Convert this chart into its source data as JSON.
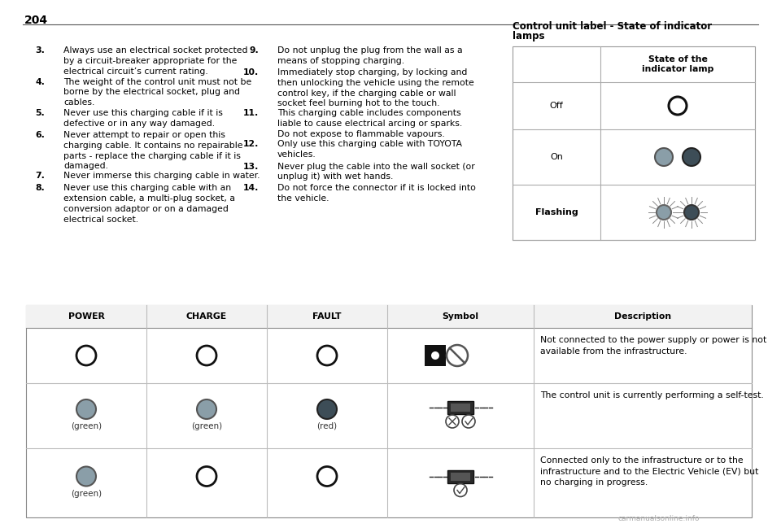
{
  "page_number": "204",
  "bg_color": "#ffffff",
  "text_color": "#000000",
  "left_column_items": [
    {
      "num": "3.",
      "text": "Always use an electrical socket protected\nby a circuit-breaker appropriate for the\nelectrical circuit’s current rating."
    },
    {
      "num": "4.",
      "text": "The weight of the control unit must not be\nborne by the electrical socket, plug and\ncables."
    },
    {
      "num": "5.",
      "text": "Never use this charging cable if it is\ndefective or in any way damaged."
    },
    {
      "num": "6.",
      "text": "Never attempt to repair or open this\ncharging cable. It contains no repairable\nparts - replace the charging cable if it is\ndamaged."
    },
    {
      "num": "7.",
      "text": "Never immerse this charging cable in water."
    },
    {
      "num": "8.",
      "text": "Never use this charging cable with an\nextension cable, a multi-plug socket, a\nconversion adaptor or on a damaged\nelectrical socket."
    }
  ],
  "right_column_items": [
    {
      "num": "9.",
      "text": "Do not unplug the plug from the wall as a\nmeans of stopping charging."
    },
    {
      "num": "10.",
      "text": "Immediately stop charging, by locking and\nthen unlocking the vehicle using the remote\ncontrol key, if the charging cable or wall\nsocket feel burning hot to the touch."
    },
    {
      "num": "11.",
      "text": "This charging cable includes components\nliable to cause electrical arcing or sparks.\nDo not expose to flammable vapours."
    },
    {
      "num": "12.",
      "text": "Only use this charging cable with TOYOTA\nvehicles."
    },
    {
      "num": "13.",
      "text": "Never plug the cable into the wall socket (or\nunplug it) with wet hands."
    },
    {
      "num": "14.",
      "text": "Do not force the connector if it is locked into\nthe vehicle."
    }
  ],
  "indicator_title_line1": "Control unit label - State of indicator",
  "indicator_title_line2": "lamps",
  "indicator_header": "State of the\nindicator lamp",
  "indicator_rows": [
    {
      "label": "Off"
    },
    {
      "label": "On"
    },
    {
      "label": "Flashing"
    }
  ],
  "bottom_table_headers": [
    "POWER",
    "CHARGE",
    "FAULT",
    "Symbol",
    "Description"
  ],
  "bottom_col_widths": [
    148,
    148,
    148,
    180,
    268
  ],
  "bottom_table_rows": [
    {
      "power": "empty_circle",
      "charge": "empty_circle",
      "fault": "empty_circle",
      "power_label": "",
      "charge_label": "",
      "fault_label": "",
      "description": "Not connected to the power supply or power is not\navailable from the infrastructure."
    },
    {
      "power": "grey_circle",
      "charge": "grey_circle",
      "fault": "dark_circle",
      "power_label": "(green)",
      "charge_label": "(green)",
      "fault_label": "(red)",
      "description": "The control unit is currently performing a self-test."
    },
    {
      "power": "grey_circle",
      "charge": "empty_circle",
      "fault": "empty_circle",
      "power_label": "(green)",
      "charge_label": "",
      "fault_label": "",
      "description": "Connected only to the infrastructure or to the\ninfrastructure and to the Electric Vehicle (EV) but\nno charging in progress."
    }
  ],
  "watermark": "carmanualsonline.info"
}
